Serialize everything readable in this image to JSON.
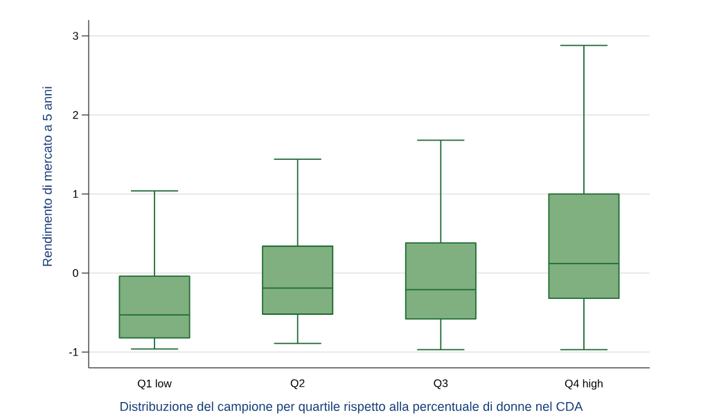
{
  "chart_data": {
    "type": "box",
    "xlabel": "Distribuzione del campione per quartile rispetto alla percentuale di donne nel CDA",
    "ylabel": "Rendimento di mercato a 5 anni",
    "categories": [
      "Q1 low",
      "Q2",
      "Q3",
      "Q4 high"
    ],
    "boxes": [
      {
        "low": -0.96,
        "q1": -0.82,
        "median": -0.53,
        "q3": -0.04,
        "high": 1.04
      },
      {
        "low": -0.89,
        "q1": -0.52,
        "median": -0.19,
        "q3": 0.34,
        "high": 1.44
      },
      {
        "low": -0.97,
        "q1": -0.58,
        "median": -0.21,
        "q3": 0.38,
        "high": 1.68
      },
      {
        "low": -0.97,
        "q1": -0.32,
        "median": 0.12,
        "q3": 1.0,
        "high": 2.88
      }
    ],
    "color": "#80b080",
    "ylim": [
      -1.2,
      3.2
    ],
    "yticks": [
      -1,
      0,
      1,
      2,
      3
    ],
    "grid": "y"
  }
}
